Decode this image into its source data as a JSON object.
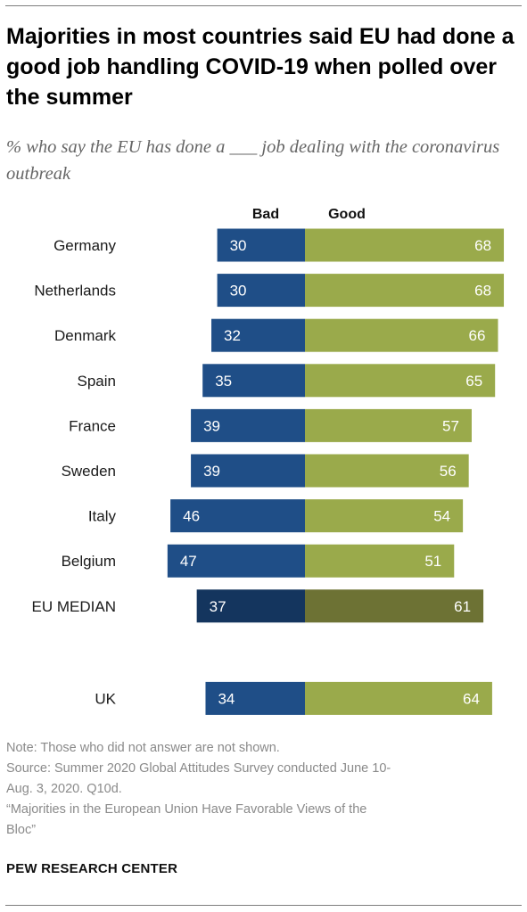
{
  "title": "Majorities in most countries said EU had done a good job handling COVID-19 when polled over the summer",
  "subtitle": "% who say the EU has done a ___ job dealing with the coronavirus outbreak",
  "chart_data": {
    "type": "bar",
    "orientation": "horizontal-diverging",
    "categories": [
      "Germany",
      "Netherlands",
      "Denmark",
      "Spain",
      "France",
      "Sweden",
      "Italy",
      "Belgium",
      "EU MEDIAN",
      "UK"
    ],
    "series": [
      {
        "name": "Bad",
        "values": [
          30,
          30,
          32,
          35,
          39,
          39,
          46,
          47,
          37,
          34
        ]
      },
      {
        "name": "Good",
        "values": [
          68,
          68,
          66,
          65,
          57,
          56,
          54,
          51,
          61,
          64
        ]
      }
    ],
    "highlighted_category": "EU MEDIAN",
    "colors": {
      "bad": "#1f4e87",
      "good": "#9aaa4b",
      "bad_median": "#14355e",
      "good_median": "#6d7234"
    },
    "xlabel": "",
    "ylabel": "",
    "grid": false,
    "legend": "top"
  },
  "notes": [
    "Note: Those who did not answer are not shown.",
    "Source: Summer 2020 Global Attitudes Survey conducted June 10-",
    "Aug. 3, 2020. Q10d.",
    "“Majorities in the European Union Have Favorable Views of the",
    "Bloc”"
  ],
  "source_label": "PEW RESEARCH CENTER"
}
